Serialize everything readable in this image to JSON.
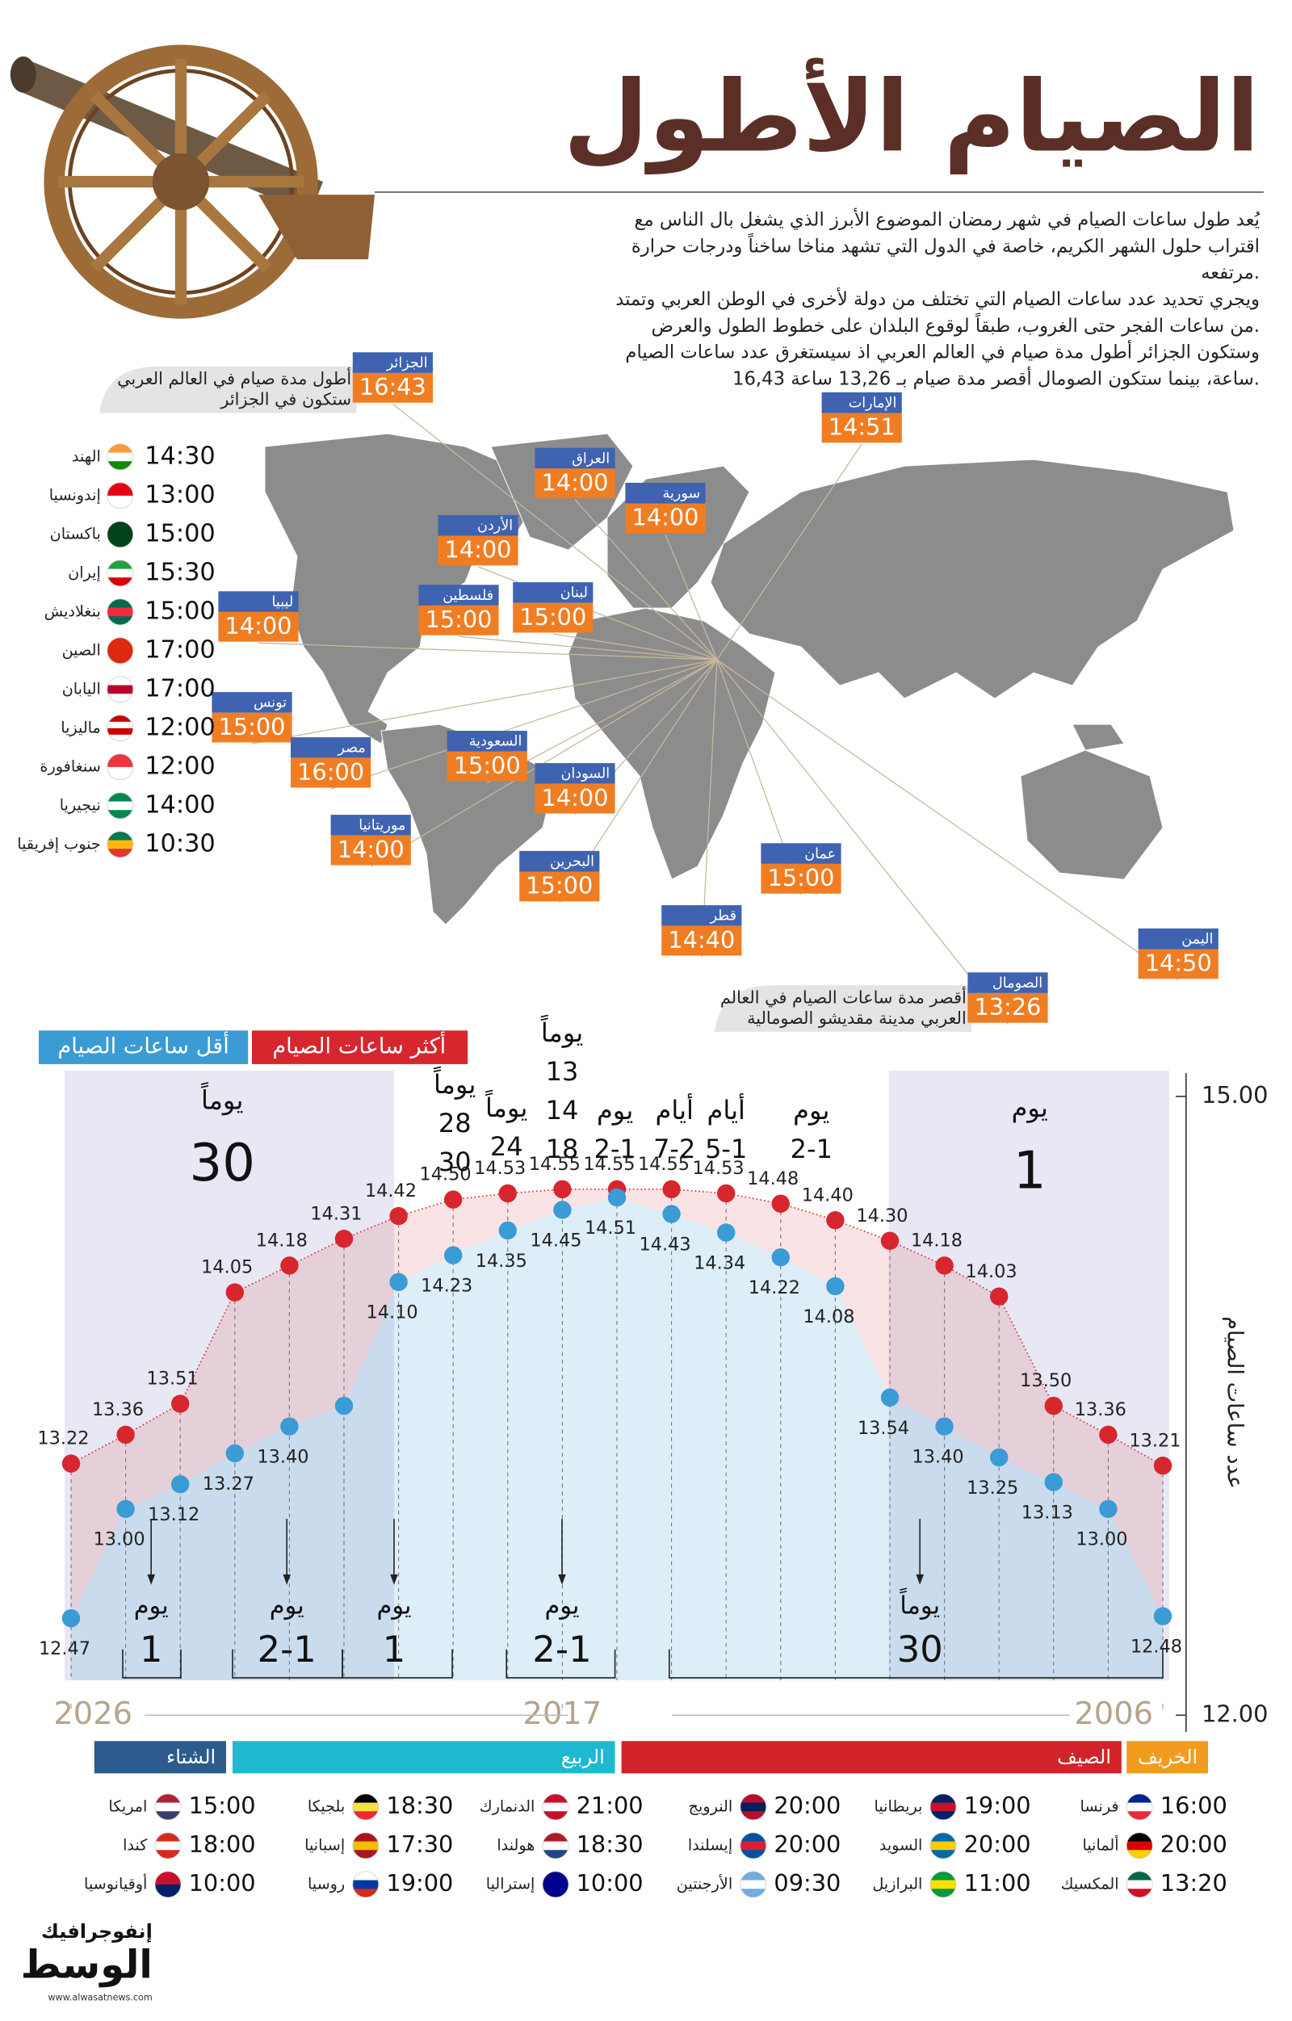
{
  "title": "الصيام الأطول",
  "intro": [
    "يُعد طول ساعات الصيام في شهر رمضان الموضوع الأبرز الذي يشغل بال الناس مع",
    "اقتراب حلول الشهر الكريم، خاصة في الدول التي تشهد مناخا ساخناً ودرجات حرارة",
    "مرتفعه.",
    "ويجري تحديد عدد ساعات الصيام التي تختلف من دولة لأخرى في الوطن العربي وتمتد",
    "من ساعات الفجر حتى الغروب، طبقاً لوقوع البلدان على خطوط الطول والعرض.",
    "وستكون الجزائر أطول مدة صيام في العالم العربي اذ سيستغرق عدد ساعات الصيام",
    "16,43 ساعة، بينما ستكون الصومال أقصر مدة صيام بـ 13,26 ساعة."
  ],
  "callouts": [
    {
      "lines": [
        "أطول مدة صيام في العالم العربي",
        "ستكون في الجزائر"
      ]
    },
    {
      "lines": [
        "أقصر مدة ساعات الصيام في العالم",
        "العربي مدينة مقديشو الصومالية"
      ]
    }
  ],
  "map_labels": [
    {
      "name": "الجزائر",
      "time": "16:43"
    },
    {
      "name": "الإمارات",
      "time": "14:51"
    },
    {
      "name": "العراق",
      "time": "14:00"
    },
    {
      "name": "سورية",
      "time": "14:00"
    },
    {
      "name": "الأردن",
      "time": "14:00"
    },
    {
      "name": "لبنان",
      "time": "15:00"
    },
    {
      "name": "فلسطين",
      "time": "15:00"
    },
    {
      "name": "ليبيا",
      "time": "14:00"
    },
    {
      "name": "تونس",
      "time": "15:00"
    },
    {
      "name": "مصر",
      "time": "16:00"
    },
    {
      "name": "السعودية",
      "time": "15:00"
    },
    {
      "name": "السودان",
      "time": "14:00"
    },
    {
      "name": "موريتانيا",
      "time": "14:00"
    },
    {
      "name": "البحرين",
      "time": "15:00"
    },
    {
      "name": "عمان",
      "time": "15:00"
    },
    {
      "name": "قطر",
      "time": "14:40"
    },
    {
      "name": "اليمن",
      "time": "14:50"
    },
    {
      "name": "الصومال",
      "time": "13:26"
    }
  ],
  "asia_list": [
    {
      "name": "الهند",
      "time": "14:30"
    },
    {
      "name": "إندونسيا",
      "time": "13:00"
    },
    {
      "name": "باكستان",
      "time": "15:00"
    },
    {
      "name": "إيران",
      "time": "15:30"
    },
    {
      "name": "بنغلاديش",
      "time": "15:00"
    },
    {
      "name": "الصين",
      "time": "17:00"
    },
    {
      "name": "اليابان",
      "time": "17:00"
    },
    {
      "name": "ماليزيا",
      "time": "12:00"
    },
    {
      "name": "سنغافورة",
      "time": "12:00"
    },
    {
      "name": "نيجيريا",
      "time": "14:00"
    },
    {
      "name": "جنوب إفريقيا",
      "time": "10:30"
    }
  ],
  "chart_data": {
    "type": "line",
    "y_label": "عدد ساعات الصيام",
    "x": [
      2026,
      2025,
      2024,
      2023,
      2022,
      2021,
      2020,
      2019,
      2018,
      2017,
      2016,
      2015,
      2014,
      2013,
      2012,
      2011,
      2010,
      2009,
      2008,
      2007,
      2006
    ],
    "xlim": [
      2026,
      2006
    ],
    "xticks": [
      2026,
      2017,
      2006
    ],
    "ylim": [
      12,
      15
    ],
    "yticks": [
      {
        "value": 12,
        "label": "12.00"
      },
      {
        "value": 15,
        "label": "15.00"
      }
    ],
    "series": [
      {
        "name": "أكثر ساعات الصيام",
        "color": "#d7262e",
        "values": [
          13.22,
          13.36,
          13.51,
          14.05,
          14.18,
          14.31,
          14.42,
          14.5,
          14.53,
          14.55,
          14.55,
          14.55,
          14.53,
          14.48,
          14.4,
          14.3,
          14.18,
          14.03,
          13.5,
          13.36,
          13.21
        ],
        "value_labels": [
          "13.22",
          "13.36",
          "13.51",
          "14.05",
          "14.18",
          "14.31",
          "14.42",
          "14.50",
          "14.53",
          "14.55",
          "14.55",
          "14.55",
          "14.53",
          "14.48",
          "14.40",
          "14.30",
          "14.18",
          "14.03",
          "13.50",
          "13.36",
          "13.21"
        ]
      },
      {
        "name": "أقل ساعات الصيام",
        "color": "#3a9bd5",
        "values": [
          12.47,
          13.0,
          13.12,
          13.27,
          13.4,
          13.5,
          14.1,
          14.23,
          14.35,
          14.45,
          14.51,
          14.43,
          14.34,
          14.22,
          14.08,
          13.54,
          13.4,
          13.25,
          13.13,
          13.0,
          12.48
        ],
        "value_labels": [
          "12.47",
          "13.00",
          "13.12",
          "13.27",
          "13.40",
          null,
          "14.10",
          "14.23",
          "14.35",
          "14.45",
          "14.51",
          "14.43",
          "14.34",
          "14.22",
          "14.08",
          "13.54",
          "13.40",
          "13.25",
          "13.13",
          "13.00",
          "12.48"
        ]
      }
    ],
    "top_notes": [
      {
        "lines": [
          "يوماً",
          "30"
        ]
      },
      {
        "lines": [
          "يوماً",
          "28",
          "30"
        ]
      },
      {
        "lines": [
          "يوماً",
          "24"
        ]
      },
      {
        "lines": [
          "يوماً",
          "13",
          "14",
          "18"
        ]
      },
      {
        "lines": [
          "يوم",
          "2-1"
        ]
      },
      {
        "lines": [
          "أيام",
          "7-2"
        ]
      },
      {
        "lines": [
          "أيام",
          "5-1"
        ]
      },
      {
        "lines": [
          "يوم",
          "2-1"
        ]
      },
      {
        "lines": [
          "يوم",
          "1"
        ]
      }
    ],
    "bottom_notes": [
      {
        "lines": [
          "يوم",
          "1"
        ]
      },
      {
        "lines": [
          "يوم",
          "2-1"
        ]
      },
      {
        "lines": [
          "يوم",
          "1"
        ]
      },
      {
        "lines": [
          "يوم",
          "2-1"
        ]
      },
      {
        "lines": [
          "يوماً",
          "30"
        ]
      }
    ]
  },
  "seasons": [
    "الشتاء",
    "الربيع",
    "الصيف",
    "الخريف"
  ],
  "world_list": [
    {
      "name": "فرنسا",
      "time": "16:00"
    },
    {
      "name": "ألمانيا",
      "time": "20:00"
    },
    {
      "name": "المكسيك",
      "time": "13:20"
    },
    {
      "name": "بريطانيا",
      "time": "19:00"
    },
    {
      "name": "السويد",
      "time": "20:00"
    },
    {
      "name": "البرازيل",
      "time": "11:00"
    },
    {
      "name": "النرويج",
      "time": "20:00"
    },
    {
      "name": "إيسلندا",
      "time": "20:00"
    },
    {
      "name": "الأرجنتين",
      "time": "09:30"
    },
    {
      "name": "الدنمارك",
      "time": "21:00"
    },
    {
      "name": "هولندا",
      "time": "18:30"
    },
    {
      "name": "إستراليا",
      "time": "10:00"
    },
    {
      "name": "بلجيكا",
      "time": "18:30"
    },
    {
      "name": "إسبانيا",
      "time": "17:30"
    },
    {
      "name": "روسيا",
      "time": "19:00"
    },
    {
      "name": "امريكا",
      "time": "15:00"
    },
    {
      "name": "كندا",
      "time": "18:00"
    },
    {
      "name": "أوقيانوسيا",
      "time": "10:00"
    }
  ],
  "logo": {
    "tag": "إنفوجرافيك",
    "brand": "الوسط",
    "url": "www.alwasatnews.com"
  }
}
